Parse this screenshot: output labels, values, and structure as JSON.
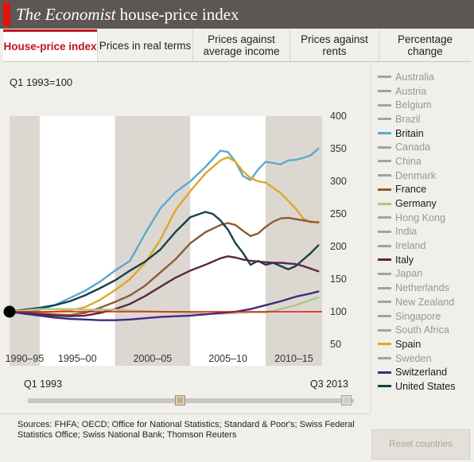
{
  "header": {
    "title_italic": "The Economist",
    "title_rest": " house-price index"
  },
  "tabs": [
    {
      "label": "House-price index",
      "active": true
    },
    {
      "label": "Prices in real terms",
      "active": false
    },
    {
      "label": "Prices against average income",
      "active": false
    },
    {
      "label": "Prices against rents",
      "active": false
    },
    {
      "label": "Percentage change",
      "active": false
    }
  ],
  "index_note": "Q1 1993=100",
  "slider": {
    "start_label": "Q1 1993",
    "end_label": "Q3 2013",
    "position": 0.466
  },
  "sources": "Sources: FHFA; OECD; Office for National Statistics; Standard & Poor's; Swiss Federal Statistics Office; Swiss National Bank; Thomson Reuters",
  "reset_button": "Reset countries",
  "colors": {
    "accent": "#c1121f",
    "baseline": "#e3120b",
    "inactive_legend": "#9a9791"
  },
  "legend": [
    {
      "name": "Australia",
      "active": false,
      "color": "#a5a29c"
    },
    {
      "name": "Austria",
      "active": false,
      "color": "#a5a29c"
    },
    {
      "name": "Belgium",
      "active": false,
      "color": "#a5a29c"
    },
    {
      "name": "Brazil",
      "active": false,
      "color": "#a5a29c"
    },
    {
      "name": "Britain",
      "active": true,
      "color": "#5aa9cf"
    },
    {
      "name": "Canada",
      "active": false,
      "color": "#a5a29c"
    },
    {
      "name": "China",
      "active": false,
      "color": "#a5a29c"
    },
    {
      "name": "Denmark",
      "active": false,
      "color": "#a5a29c"
    },
    {
      "name": "France",
      "active": true,
      "color": "#8c5b32"
    },
    {
      "name": "Germany",
      "active": true,
      "color": "#a6c98a"
    },
    {
      "name": "Hong Kong",
      "active": false,
      "color": "#a5a29c"
    },
    {
      "name": "India",
      "active": false,
      "color": "#a5a29c"
    },
    {
      "name": "Ireland",
      "active": false,
      "color": "#a5a29c"
    },
    {
      "name": "Italy",
      "active": true,
      "color": "#5a2743"
    },
    {
      "name": "Japan",
      "active": false,
      "color": "#a5a29c"
    },
    {
      "name": "Netherlands",
      "active": false,
      "color": "#a5a29c"
    },
    {
      "name": "New Zealand",
      "active": false,
      "color": "#a5a29c"
    },
    {
      "name": "Singapore",
      "active": false,
      "color": "#a5a29c"
    },
    {
      "name": "South Africa",
      "active": false,
      "color": "#a5a29c"
    },
    {
      "name": "Spain",
      "active": true,
      "color": "#e0a626"
    },
    {
      "name": "Sweden",
      "active": false,
      "color": "#a5a29c"
    },
    {
      "name": "Switzerland",
      "active": true,
      "color": "#3e2b82"
    },
    {
      "name": "United States",
      "active": true,
      "color": "#173f4d"
    }
  ],
  "chart_data": {
    "type": "line",
    "x_label_unit": "year",
    "xlim": [
      1993.0,
      2013.75
    ],
    "ylim": [
      50,
      400
    ],
    "yticks": [
      50,
      100,
      150,
      200,
      250,
      300,
      350,
      400
    ],
    "x_periods": [
      "1990–95",
      "1995–00",
      "2000–05",
      "2005–10",
      "2010–15"
    ],
    "period_bounds": [
      [
        1993.0,
        1995.0
      ],
      [
        1995.0,
        2000.0
      ],
      [
        2000.0,
        2005.0
      ],
      [
        2005.0,
        2010.0
      ],
      [
        2010.0,
        2013.75
      ]
    ],
    "baseline": 100,
    "start_marker": {
      "x": 1993.0,
      "y": 100
    },
    "series": [
      {
        "name": "Britain",
        "points": [
          [
            1993,
            100
          ],
          [
            1994,
            102
          ],
          [
            1995,
            103
          ],
          [
            1996,
            110
          ],
          [
            1997,
            121
          ],
          [
            1998,
            132
          ],
          [
            1999,
            146
          ],
          [
            2000,
            163
          ],
          [
            2001,
            178
          ],
          [
            2002,
            220
          ],
          [
            2003,
            258
          ],
          [
            2004,
            283
          ],
          [
            2005,
            300
          ],
          [
            2006,
            322
          ],
          [
            2007,
            347
          ],
          [
            2007.5,
            345
          ],
          [
            2008,
            330
          ],
          [
            2008.5,
            308
          ],
          [
            2009,
            302
          ],
          [
            2009.5,
            318
          ],
          [
            2010,
            330
          ],
          [
            2010.5,
            328
          ],
          [
            2011,
            326
          ],
          [
            2011.5,
            332
          ],
          [
            2012,
            333
          ],
          [
            2012.5,
            336
          ],
          [
            2013,
            340
          ],
          [
            2013.5,
            350
          ]
        ]
      },
      {
        "name": "Spain",
        "points": [
          [
            1993,
            100
          ],
          [
            1994,
            99
          ],
          [
            1995,
            99
          ],
          [
            1996,
            100
          ],
          [
            1997,
            102
          ],
          [
            1998,
            107
          ],
          [
            1999,
            118
          ],
          [
            2000,
            133
          ],
          [
            2001,
            150
          ],
          [
            2002,
            175
          ],
          [
            2003,
            210
          ],
          [
            2004,
            255
          ],
          [
            2005,
            285
          ],
          [
            2006,
            312
          ],
          [
            2007,
            332
          ],
          [
            2007.5,
            337
          ],
          [
            2008,
            330
          ],
          [
            2008.5,
            315
          ],
          [
            2009,
            305
          ],
          [
            2009.5,
            300
          ],
          [
            2010,
            298
          ],
          [
            2010.5,
            290
          ],
          [
            2011,
            282
          ],
          [
            2011.5,
            270
          ],
          [
            2012,
            258
          ],
          [
            2012.5,
            243
          ],
          [
            2013,
            237
          ],
          [
            2013.5,
            238
          ]
        ]
      },
      {
        "name": "France",
        "points": [
          [
            1993,
            100
          ],
          [
            1994,
            99
          ],
          [
            1995,
            97
          ],
          [
            1996,
            96
          ],
          [
            1997,
            95
          ],
          [
            1998,
            98
          ],
          [
            1999,
            106
          ],
          [
            2000,
            115
          ],
          [
            2001,
            125
          ],
          [
            2002,
            140
          ],
          [
            2003,
            160
          ],
          [
            2004,
            180
          ],
          [
            2005,
            205
          ],
          [
            2006,
            222
          ],
          [
            2007,
            233
          ],
          [
            2007.5,
            236
          ],
          [
            2008,
            233
          ],
          [
            2008.5,
            224
          ],
          [
            2009,
            216
          ],
          [
            2009.5,
            220
          ],
          [
            2010,
            230
          ],
          [
            2010.5,
            238
          ],
          [
            2011,
            243
          ],
          [
            2011.5,
            244
          ],
          [
            2012,
            242
          ],
          [
            2012.5,
            240
          ],
          [
            2013,
            238
          ],
          [
            2013.5,
            237
          ]
        ]
      },
      {
        "name": "United States",
        "points": [
          [
            1993,
            100
          ],
          [
            1994,
            103
          ],
          [
            1995,
            106
          ],
          [
            1996,
            110
          ],
          [
            1997,
            116
          ],
          [
            1998,
            125
          ],
          [
            1999,
            136
          ],
          [
            2000,
            148
          ],
          [
            2001,
            163
          ],
          [
            2002,
            177
          ],
          [
            2003,
            195
          ],
          [
            2004,
            222
          ],
          [
            2005,
            245
          ],
          [
            2006,
            253
          ],
          [
            2006.5,
            250
          ],
          [
            2007,
            240
          ],
          [
            2007.5,
            226
          ],
          [
            2008,
            205
          ],
          [
            2008.5,
            190
          ],
          [
            2009,
            172
          ],
          [
            2009.5,
            178
          ],
          [
            2010,
            172
          ],
          [
            2010.5,
            175
          ],
          [
            2011,
            170
          ],
          [
            2011.5,
            165
          ],
          [
            2012,
            170
          ],
          [
            2012.5,
            180
          ],
          [
            2013,
            190
          ],
          [
            2013.5,
            202
          ]
        ]
      },
      {
        "name": "Italy",
        "points": [
          [
            1993,
            100
          ],
          [
            1994,
            98
          ],
          [
            1995,
            96
          ],
          [
            1996,
            94
          ],
          [
            1997,
            93
          ],
          [
            1998,
            94
          ],
          [
            1999,
            98
          ],
          [
            2000,
            104
          ],
          [
            2001,
            112
          ],
          [
            2002,
            124
          ],
          [
            2003,
            138
          ],
          [
            2004,
            152
          ],
          [
            2005,
            163
          ],
          [
            2006,
            172
          ],
          [
            2007,
            182
          ],
          [
            2007.5,
            185
          ],
          [
            2008,
            183
          ],
          [
            2008.5,
            180
          ],
          [
            2009,
            178
          ],
          [
            2009.5,
            177
          ],
          [
            2010,
            176
          ],
          [
            2010.5,
            175
          ],
          [
            2011,
            175
          ],
          [
            2011.5,
            174
          ],
          [
            2012,
            173
          ],
          [
            2012.5,
            170
          ],
          [
            2013,
            166
          ],
          [
            2013.5,
            162
          ]
        ]
      },
      {
        "name": "Germany",
        "points": [
          [
            1993,
            100
          ],
          [
            1994,
            102
          ],
          [
            1995,
            104
          ],
          [
            1996,
            104
          ],
          [
            1997,
            104
          ],
          [
            1998,
            103
          ],
          [
            1999,
            103
          ],
          [
            2000,
            103
          ],
          [
            2001,
            102
          ],
          [
            2002,
            101
          ],
          [
            2003,
            100
          ],
          [
            2004,
            99
          ],
          [
            2005,
            98
          ],
          [
            2006,
            97
          ],
          [
            2007,
            97
          ],
          [
            2008,
            98
          ],
          [
            2009,
            99
          ],
          [
            2010,
            99
          ],
          [
            2010.5,
            101
          ],
          [
            2011,
            104
          ],
          [
            2011.5,
            107
          ],
          [
            2012,
            110
          ],
          [
            2012.5,
            114
          ],
          [
            2013,
            118
          ],
          [
            2013.5,
            122
          ]
        ]
      },
      {
        "name": "Switzerland",
        "points": [
          [
            1993,
            100
          ],
          [
            1994,
            97
          ],
          [
            1995,
            94
          ],
          [
            1996,
            91
          ],
          [
            1997,
            89
          ],
          [
            1998,
            88
          ],
          [
            1999,
            87
          ],
          [
            2000,
            87
          ],
          [
            2001,
            88
          ],
          [
            2002,
            90
          ],
          [
            2003,
            92
          ],
          [
            2004,
            93
          ],
          [
            2005,
            94
          ],
          [
            2006,
            96
          ],
          [
            2007,
            98
          ],
          [
            2008,
            100
          ],
          [
            2009,
            104
          ],
          [
            2010,
            110
          ],
          [
            2011,
            116
          ],
          [
            2012,
            123
          ],
          [
            2013,
            128
          ],
          [
            2013.5,
            131
          ]
        ]
      }
    ]
  }
}
